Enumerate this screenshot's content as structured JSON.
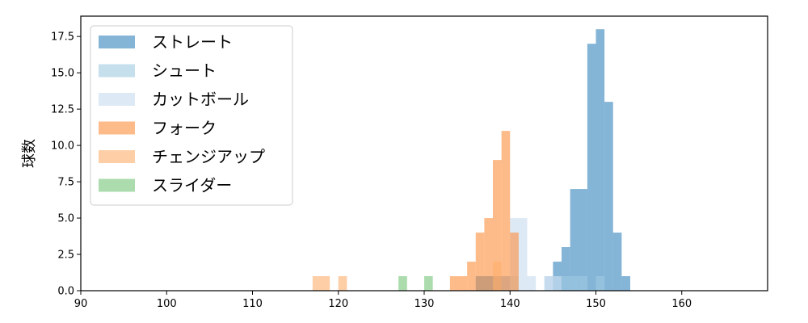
{
  "chart_data": {
    "type": "histogram",
    "xlabel": "",
    "ylabel": "球数",
    "xlim": [
      90,
      170
    ],
    "ylim": [
      0,
      18.9
    ],
    "xticks": [
      90,
      100,
      110,
      120,
      130,
      140,
      150,
      160
    ],
    "yticks": [
      0.0,
      2.5,
      5.0,
      7.5,
      10.0,
      12.5,
      15.0,
      17.5
    ],
    "ytick_labels": [
      "0.0",
      "2.5",
      "5.0",
      "7.5",
      "10.0",
      "12.5",
      "15.0",
      "17.5"
    ],
    "legend_position": "top-left",
    "series": [
      {
        "name": "ストレート",
        "color": "#1f77b4",
        "opacity": 0.55,
        "bins": [
          {
            "x0": 136.0,
            "x1": 137.0,
            "count": 1
          },
          {
            "x0": 137.0,
            "x1": 138.0,
            "count": 1
          },
          {
            "x0": 138.0,
            "x1": 139.0,
            "count": 1
          },
          {
            "x0": 139.0,
            "x1": 140.0,
            "count": 1
          },
          {
            "x0": 145.0,
            "x1": 146.0,
            "count": 2
          },
          {
            "x0": 146.0,
            "x1": 147.0,
            "count": 3
          },
          {
            "x0": 147.0,
            "x1": 149.0,
            "count": 7
          },
          {
            "x0": 149.0,
            "x1": 150.0,
            "count": 17
          },
          {
            "x0": 150.0,
            "x1": 151.0,
            "count": 18
          },
          {
            "x0": 151.0,
            "x1": 152.0,
            "count": 13
          },
          {
            "x0": 152.0,
            "x1": 153.0,
            "count": 4
          },
          {
            "x0": 153.0,
            "x1": 154.0,
            "count": 1
          }
        ]
      },
      {
        "name": "シュート",
        "color": "#9ecae1",
        "opacity": 0.6,
        "bins": [
          {
            "x0": 140.0,
            "x1": 141.0,
            "count": 1
          },
          {
            "x0": 144.0,
            "x1": 145.0,
            "count": 1
          },
          {
            "x0": 145.0,
            "x1": 146.0,
            "count": 1
          },
          {
            "x0": 146.0,
            "x1": 147.0,
            "count": 1
          },
          {
            "x0": 147.0,
            "x1": 148.0,
            "count": 1
          },
          {
            "x0": 148.0,
            "x1": 149.0,
            "count": 1
          },
          {
            "x0": 150.0,
            "x1": 151.0,
            "count": 1
          }
        ]
      },
      {
        "name": "カットボール",
        "color": "#c6dbef",
        "opacity": 0.6,
        "bins": [
          {
            "x0": 139.0,
            "x1": 140.0,
            "count": 1
          },
          {
            "x0": 140.0,
            "x1": 142.0,
            "count": 5
          },
          {
            "x0": 142.0,
            "x1": 143.0,
            "count": 1
          },
          {
            "x0": 144.0,
            "x1": 145.0,
            "count": 1
          },
          {
            "x0": 145.0,
            "x1": 146.0,
            "count": 1
          }
        ]
      },
      {
        "name": "フォーク",
        "color": "#fd8d3c",
        "opacity": 0.6,
        "bins": [
          {
            "x0": 133.0,
            "x1": 135.0,
            "count": 1
          },
          {
            "x0": 135.0,
            "x1": 136.0,
            "count": 2
          },
          {
            "x0": 136.0,
            "x1": 137.0,
            "count": 4
          },
          {
            "x0": 137.0,
            "x1": 138.0,
            "count": 5
          },
          {
            "x0": 138.0,
            "x1": 139.0,
            "count": 9
          },
          {
            "x0": 139.0,
            "x1": 140.0,
            "count": 11
          },
          {
            "x0": 140.0,
            "x1": 141.0,
            "count": 4
          }
        ]
      },
      {
        "name": "チェンジアップ",
        "color": "#fdae6b",
        "opacity": 0.6,
        "bins": [
          {
            "x0": 117.0,
            "x1": 119.0,
            "count": 1
          },
          {
            "x0": 120.0,
            "x1": 121.0,
            "count": 1
          },
          {
            "x0": 138.0,
            "x1": 139.0,
            "count": 2
          }
        ]
      },
      {
        "name": "スライダー",
        "color": "#74c476",
        "opacity": 0.6,
        "bins": [
          {
            "x0": 127.0,
            "x1": 128.0,
            "count": 1
          },
          {
            "x0": 130.0,
            "x1": 131.0,
            "count": 1
          }
        ]
      }
    ]
  }
}
